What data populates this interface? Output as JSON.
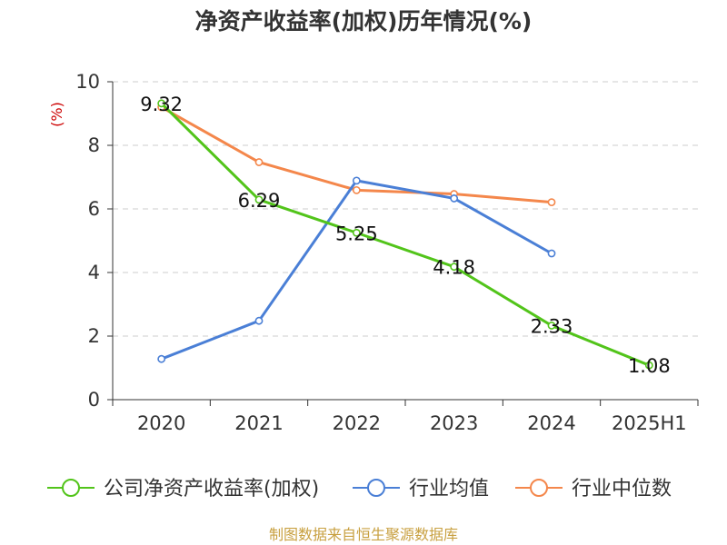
{
  "chart_data": {
    "type": "line",
    "title": "净资产收益率(加权)历年情况(%)",
    "ylabel": "(%)",
    "categories": [
      "2020",
      "2021",
      "2022",
      "2023",
      "2024",
      "2025H1"
    ],
    "ylim": [
      0,
      10
    ],
    "yticks": [
      0,
      2,
      4,
      6,
      8,
      10
    ],
    "grid": true,
    "legend_position": "bottom",
    "series": [
      {
        "name": "公司净资产收益率(加权)",
        "color": "#52c41a",
        "values": [
          9.32,
          6.29,
          5.25,
          4.18,
          2.33,
          1.08
        ],
        "labels": [
          "9.32",
          "6.29",
          "5.25",
          "4.18",
          "2.33",
          "1.08"
        ]
      },
      {
        "name": "行业均值",
        "color": "#4a7fd6",
        "values": [
          1.28,
          2.48,
          6.89,
          6.33,
          4.6,
          null
        ]
      },
      {
        "name": "行业中位数",
        "color": "#f4874b",
        "values": [
          9.2,
          7.47,
          6.59,
          6.47,
          6.21,
          null
        ]
      }
    ]
  },
  "source": "制图数据来自恒生聚源数据库"
}
